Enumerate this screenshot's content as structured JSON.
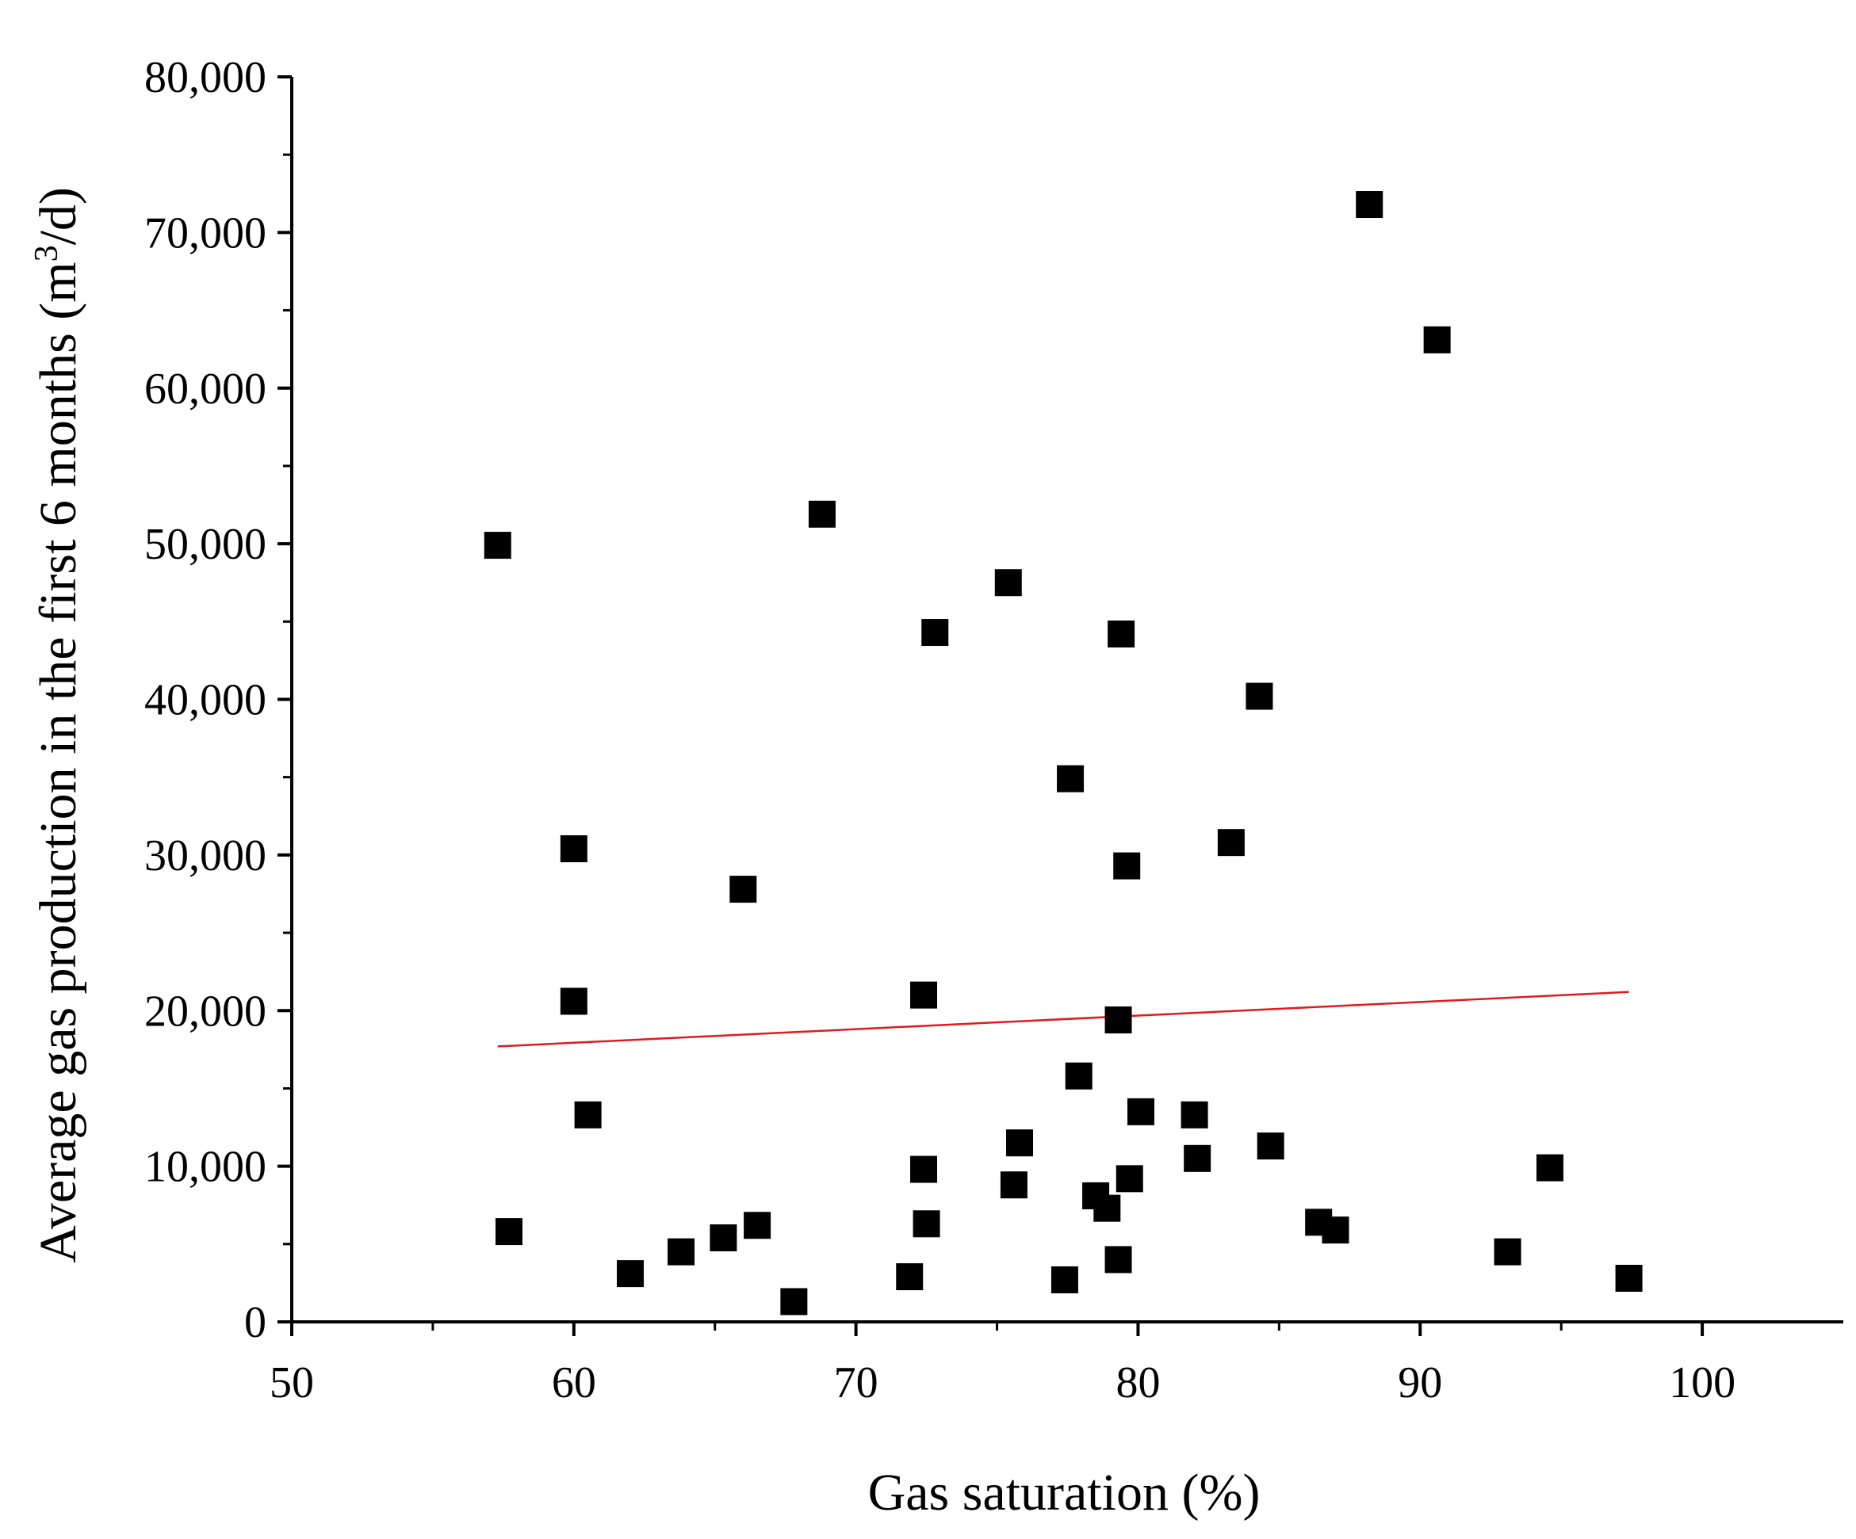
{
  "chart_data": {
    "type": "scatter",
    "xlabel": "Gas saturation (%)",
    "ylabel": "Average gas production in the first 6 months (m3/d)",
    "ylabel_parts": {
      "main": "Average gas production in the first 6 months (m",
      "sup": "3",
      "tail": "/d)"
    },
    "xlim": [
      50,
      105
    ],
    "ylim": [
      0,
      80000
    ],
    "x_ticks": [
      50,
      60,
      70,
      80,
      90,
      100
    ],
    "x_tick_labels": [
      "50",
      "60",
      "70",
      "80",
      "90",
      "100"
    ],
    "y_ticks": [
      0,
      10000,
      20000,
      30000,
      40000,
      50000,
      60000,
      70000,
      80000
    ],
    "y_tick_labels": [
      "0",
      "10,000",
      "20,000",
      "30,000",
      "40,000",
      "50,000",
      "60,000",
      "70,000",
      "80,000"
    ],
    "grid": false,
    "marker": "square",
    "marker_color": "#000000",
    "series": [
      {
        "name": "wells",
        "points": [
          [
            57.3,
            49900
          ],
          [
            57.7,
            5800
          ],
          [
            60.0,
            30400
          ],
          [
            60.0,
            20600
          ],
          [
            60.5,
            13300
          ],
          [
            62.0,
            3100
          ],
          [
            63.8,
            4500
          ],
          [
            65.3,
            5400
          ],
          [
            66.0,
            27800
          ],
          [
            66.5,
            6200
          ],
          [
            67.8,
            1300
          ],
          [
            68.8,
            51900
          ],
          [
            71.9,
            2900
          ],
          [
            72.4,
            21000
          ],
          [
            72.4,
            9800
          ],
          [
            72.5,
            6300
          ],
          [
            72.8,
            44300
          ],
          [
            75.4,
            47500
          ],
          [
            75.6,
            8800
          ],
          [
            75.8,
            11500
          ],
          [
            77.4,
            2700
          ],
          [
            77.6,
            34900
          ],
          [
            77.9,
            15800
          ],
          [
            78.5,
            8100
          ],
          [
            78.9,
            7300
          ],
          [
            79.3,
            19400
          ],
          [
            79.3,
            4000
          ],
          [
            79.4,
            44200
          ],
          [
            79.6,
            29300
          ],
          [
            79.7,
            9200
          ],
          [
            80.1,
            13500
          ],
          [
            82.0,
            13300
          ],
          [
            82.1,
            10500
          ],
          [
            83.3,
            30800
          ],
          [
            84.3,
            40200
          ],
          [
            84.7,
            11300
          ],
          [
            86.4,
            6400
          ],
          [
            87.0,
            5900
          ],
          [
            88.2,
            71800
          ],
          [
            90.6,
            63100
          ],
          [
            93.1,
            4500
          ],
          [
            94.6,
            9900
          ],
          [
            97.4,
            2800
          ]
        ]
      }
    ],
    "trendline": {
      "color": "#e31a1c",
      "x": [
        57.3,
        97.4
      ],
      "y": [
        17700,
        21200
      ]
    }
  }
}
